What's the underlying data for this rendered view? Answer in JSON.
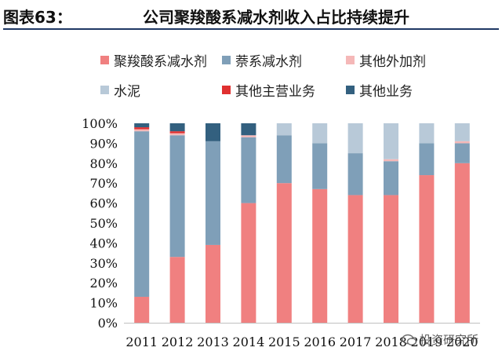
{
  "header": {
    "figure_label": "图表63：",
    "figure_title": "公司聚羧酸系减水剂收入占比持续提升"
  },
  "watermark": {
    "text": "投资研究所",
    "icon": "wechat-icon"
  },
  "chart_data": {
    "type": "bar",
    "stacked": true,
    "title": "",
    "xlabel": "",
    "ylabel": "",
    "ylim": [
      0,
      100
    ],
    "ytick_labels": [
      "0%",
      "10%",
      "20%",
      "30%",
      "40%",
      "50%",
      "60%",
      "70%",
      "80%",
      "90%",
      "100%"
    ],
    "legend_position": "top",
    "categories": [
      "2011",
      "2012",
      "2013",
      "2014",
      "2015",
      "2016",
      "2017",
      "2018",
      "2019",
      "2020"
    ],
    "series": [
      {
        "name": "聚羧酸系减水剂",
        "color": "#f08080",
        "values": [
          13,
          33,
          39,
          60,
          70,
          67,
          64,
          64,
          74,
          80
        ]
      },
      {
        "name": "萘系减水剂",
        "color": "#7f9fb8",
        "values": [
          83,
          61,
          52,
          33,
          24,
          23,
          21,
          17,
          16,
          10
        ]
      },
      {
        "name": "其他外加剂",
        "color": "#f5b8b8",
        "values": [
          1,
          1,
          0,
          1,
          0,
          0,
          0,
          1,
          0,
          1
        ]
      },
      {
        "name": "水泥",
        "color": "#b8c9d8",
        "values": [
          0,
          0,
          0,
          0,
          6,
          10,
          15,
          18,
          10,
          9
        ]
      },
      {
        "name": "其他主营业务",
        "color": "#e03030",
        "values": [
          1,
          1,
          0,
          0,
          0,
          0,
          0,
          0,
          0,
          0
        ]
      },
      {
        "name": "其他业务",
        "color": "#33607f",
        "values": [
          2,
          4,
          9,
          6,
          0,
          0,
          0,
          0,
          0,
          0
        ]
      }
    ]
  }
}
